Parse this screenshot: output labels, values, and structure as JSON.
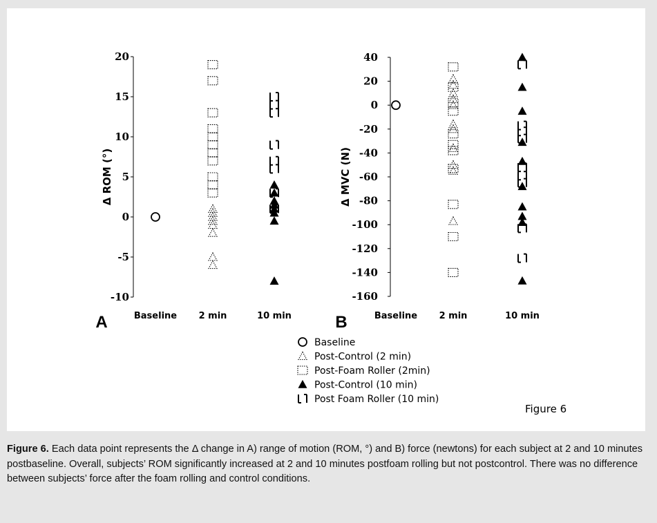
{
  "chart_data": [
    {
      "panel": "A",
      "type": "scatter",
      "ylabel": "Δ ROM (°)",
      "ylim": [
        -10,
        20
      ],
      "yticks": [
        -10,
        -5,
        0,
        5,
        10,
        15,
        20
      ],
      "categories": [
        "Baseline",
        "2 min",
        "10 min"
      ],
      "series": [
        {
          "name": "Baseline",
          "marker": "open-circle",
          "points": [
            {
              "x": "Baseline",
              "y": 0
            }
          ]
        },
        {
          "name": "Post-Control (2 min)",
          "marker": "dotted-triangle",
          "points": [
            {
              "x": "2 min",
              "y": -6
            },
            {
              "x": "2 min",
              "y": -5
            },
            {
              "x": "2 min",
              "y": -2
            },
            {
              "x": "2 min",
              "y": -1
            },
            {
              "x": "2 min",
              "y": -0.5
            },
            {
              "x": "2 min",
              "y": 0
            },
            {
              "x": "2 min",
              "y": 0.5
            },
            {
              "x": "2 min",
              "y": 1
            }
          ]
        },
        {
          "name": "Post-Foam Roller (2min)",
          "marker": "dotted-square",
          "points": [
            {
              "x": "2 min",
              "y": 3
            },
            {
              "x": "2 min",
              "y": 4
            },
            {
              "x": "2 min",
              "y": 5
            },
            {
              "x": "2 min",
              "y": 7
            },
            {
              "x": "2 min",
              "y": 8
            },
            {
              "x": "2 min",
              "y": 9
            },
            {
              "x": "2 min",
              "y": 10
            },
            {
              "x": "2 min",
              "y": 11
            },
            {
              "x": "2 min",
              "y": 13
            },
            {
              "x": "2 min",
              "y": 17
            },
            {
              "x": "2 min",
              "y": 19
            }
          ]
        },
        {
          "name": "Post-Control (10 min)",
          "marker": "filled-triangle",
          "points": [
            {
              "x": "10 min",
              "y": -8
            },
            {
              "x": "10 min",
              "y": -0.5
            },
            {
              "x": "10 min",
              "y": 0.5
            },
            {
              "x": "10 min",
              "y": 1
            },
            {
              "x": "10 min",
              "y": 1.5
            },
            {
              "x": "10 min",
              "y": 2
            },
            {
              "x": "10 min",
              "y": 3
            },
            {
              "x": "10 min",
              "y": 4
            }
          ]
        },
        {
          "name": "Post Foam Roller (10 min)",
          "marker": "dashed-bracket",
          "points": [
            {
              "x": "10 min",
              "y": 1
            },
            {
              "x": "10 min",
              "y": 3
            },
            {
              "x": "10 min",
              "y": 6
            },
            {
              "x": "10 min",
              "y": 7
            },
            {
              "x": "10 min",
              "y": 9
            },
            {
              "x": "10 min",
              "y": 13
            },
            {
              "x": "10 min",
              "y": 14
            },
            {
              "x": "10 min",
              "y": 15
            }
          ]
        }
      ]
    },
    {
      "panel": "B",
      "type": "scatter",
      "ylabel": "Δ MVC (N)",
      "ylim": [
        -160,
        40
      ],
      "yticks": [
        -160,
        -140,
        -120,
        -100,
        -80,
        -60,
        -40,
        -20,
        0,
        20,
        40
      ],
      "categories": [
        "Baseline",
        "2 min",
        "10 min"
      ],
      "series": [
        {
          "name": "Baseline",
          "marker": "open-circle",
          "points": [
            {
              "x": "Baseline",
              "y": 0
            }
          ]
        },
        {
          "name": "Post-Control (2 min)",
          "marker": "dotted-triangle",
          "points": [
            {
              "x": "2 min",
              "y": -97
            },
            {
              "x": "2 min",
              "y": -55
            },
            {
              "x": "2 min",
              "y": -50
            },
            {
              "x": "2 min",
              "y": -36
            },
            {
              "x": "2 min",
              "y": -20
            },
            {
              "x": "2 min",
              "y": -16
            },
            {
              "x": "2 min",
              "y": 0
            },
            {
              "x": "2 min",
              "y": 5
            },
            {
              "x": "2 min",
              "y": 10
            },
            {
              "x": "2 min",
              "y": 17
            },
            {
              "x": "2 min",
              "y": 22
            }
          ]
        },
        {
          "name": "Post-Foam Roller (2min)",
          "marker": "dotted-square",
          "points": [
            {
              "x": "2 min",
              "y": -140
            },
            {
              "x": "2 min",
              "y": -110
            },
            {
              "x": "2 min",
              "y": -83
            },
            {
              "x": "2 min",
              "y": -53
            },
            {
              "x": "2 min",
              "y": -38
            },
            {
              "x": "2 min",
              "y": -33
            },
            {
              "x": "2 min",
              "y": -24
            },
            {
              "x": "2 min",
              "y": -5
            },
            {
              "x": "2 min",
              "y": 2
            },
            {
              "x": "2 min",
              "y": 15
            },
            {
              "x": "2 min",
              "y": 32
            }
          ]
        },
        {
          "name": "Post-Control (10 min)",
          "marker": "filled-triangle",
          "points": [
            {
              "x": "10 min",
              "y": -147
            },
            {
              "x": "10 min",
              "y": -98
            },
            {
              "x": "10 min",
              "y": -93
            },
            {
              "x": "10 min",
              "y": -85
            },
            {
              "x": "10 min",
              "y": -68
            },
            {
              "x": "10 min",
              "y": -47
            },
            {
              "x": "10 min",
              "y": -31
            },
            {
              "x": "10 min",
              "y": -5
            },
            {
              "x": "10 min",
              "y": 15
            },
            {
              "x": "10 min",
              "y": 40
            }
          ]
        },
        {
          "name": "Post Foam Roller (10 min)",
          "marker": "dashed-bracket",
          "points": [
            {
              "x": "10 min",
              "y": -128
            },
            {
              "x": "10 min",
              "y": -103
            },
            {
              "x": "10 min",
              "y": -65
            },
            {
              "x": "10 min",
              "y": -59
            },
            {
              "x": "10 min",
              "y": -52
            },
            {
              "x": "10 min",
              "y": -28
            },
            {
              "x": "10 min",
              "y": -22
            },
            {
              "x": "10 min",
              "y": -17
            },
            {
              "x": "10 min",
              "y": 34
            }
          ]
        }
      ]
    }
  ],
  "legend": [
    {
      "label": "Baseline",
      "marker": "open-circle"
    },
    {
      "label": "Post-Control (2 min)",
      "marker": "dotted-triangle"
    },
    {
      "label": "Post-Foam Roller (2min)",
      "marker": "dotted-square"
    },
    {
      "label": "Post-Control (10 min)",
      "marker": "filled-triangle"
    },
    {
      "label": "Post Foam Roller (10 min)",
      "marker": "dashed-bracket"
    }
  ],
  "figure_label": "Figure 6",
  "caption": {
    "lead": "Figure 6.",
    "text": " Each data point represents the Δ change in A) range of motion (ROM, °) and B) force (newtons) for each subject at 2 and 10 minutes postbaseline. Overall, subjects’ ROM significantly increased at 2 and 10 minutes postfoam rolling but not postcontrol. There was no difference between subjects’ force after the foam rolling and control conditions."
  },
  "colors": {
    "panel_bg": "#ffffff",
    "frame_bg": "#e6e6e6",
    "ink": "#000000"
  }
}
